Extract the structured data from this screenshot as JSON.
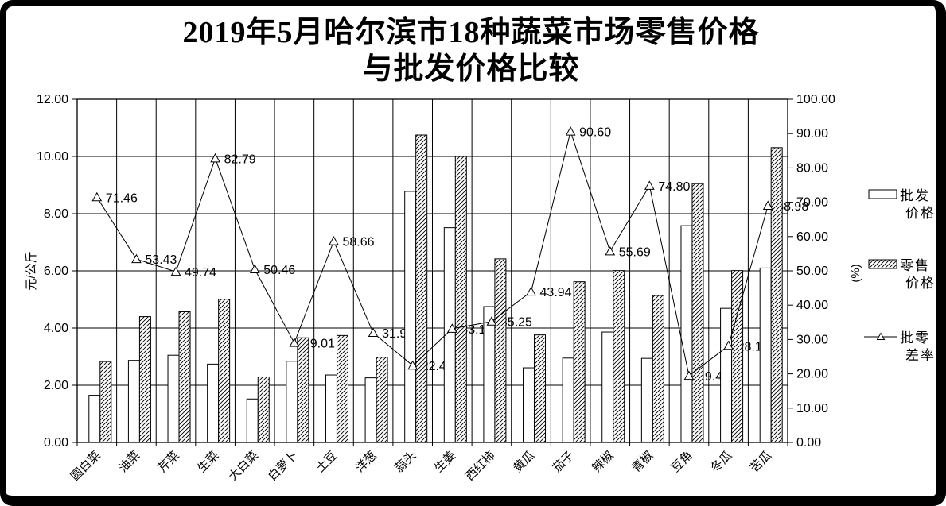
{
  "title": {
    "line1": "2019年5月哈尔滨市18种蔬菜市场零售价格",
    "line2": "与批发价格比较"
  },
  "colors": {
    "foreground": "#000000",
    "background": "#ffffff"
  },
  "chart_data": {
    "type": "bar",
    "subtype": "combo-bar-line",
    "title": "2019年5月哈尔滨市18种蔬菜市场零售价格与批发价格比较",
    "categories": [
      "圆白菜",
      "油菜",
      "芹菜",
      "生菜",
      "大白菜",
      "白萝卜",
      "土豆",
      "洋葱",
      "蒜头",
      "生姜",
      "西红柿",
      "黄瓜",
      "茄子",
      "辣椒",
      "青椒",
      "豆角",
      "冬瓜",
      "苦瓜"
    ],
    "series": [
      {
        "name": "批发价格",
        "type": "bar",
        "axis": "left",
        "style": "white-bar",
        "values": [
          1.65,
          2.87,
          3.05,
          2.74,
          1.52,
          2.84,
          2.36,
          2.26,
          8.78,
          7.51,
          4.75,
          2.61,
          2.95,
          3.86,
          2.94,
          7.58,
          4.69,
          6.1
        ]
      },
      {
        "name": "零售价格",
        "type": "bar",
        "axis": "left",
        "style": "hatched-bar",
        "values": [
          2.83,
          4.4,
          4.57,
          5.01,
          2.29,
          3.66,
          3.74,
          2.98,
          10.75,
          10.0,
          6.42,
          3.76,
          5.62,
          6.01,
          5.14,
          9.05,
          6.01,
          10.31
        ]
      },
      {
        "name": "批零差率",
        "type": "line",
        "axis": "right",
        "marker": "triangle",
        "labels_visible": true,
        "values": [
          71.46,
          53.43,
          49.74,
          82.79,
          50.46,
          29.01,
          58.66,
          31.93,
          22.41,
          33.14,
          35.25,
          43.94,
          90.6,
          55.69,
          74.8,
          19.42,
          28.17,
          68.98
        ]
      }
    ],
    "left_axis": {
      "title": "元/公斤",
      "min": 0,
      "max": 12,
      "step": 2,
      "ticks": [
        "0.00",
        "2.00",
        "4.00",
        "6.00",
        "8.00",
        "10.00",
        "12.00"
      ]
    },
    "right_axis": {
      "title": "(%)",
      "min": 0,
      "max": 100,
      "step": 10,
      "ticks": [
        "0.00",
        "10.00",
        "20.00",
        "30.00",
        "40.00",
        "50.00",
        "60.00",
        "70.00",
        "80.00",
        "90.00",
        "100.00"
      ]
    },
    "grid": {
      "horizontal": true,
      "vertical": true
    },
    "legend_position": "right",
    "legend": [
      {
        "name": "批发价格",
        "lines": [
          "批发",
          "价格"
        ],
        "swatch": "white-bar"
      },
      {
        "name": "零售价格",
        "lines": [
          "零售",
          "价格"
        ],
        "swatch": "hatched-bar"
      },
      {
        "name": "批零差率",
        "lines": [
          "批零",
          "差率"
        ],
        "swatch": "line-triangle"
      }
    ]
  }
}
